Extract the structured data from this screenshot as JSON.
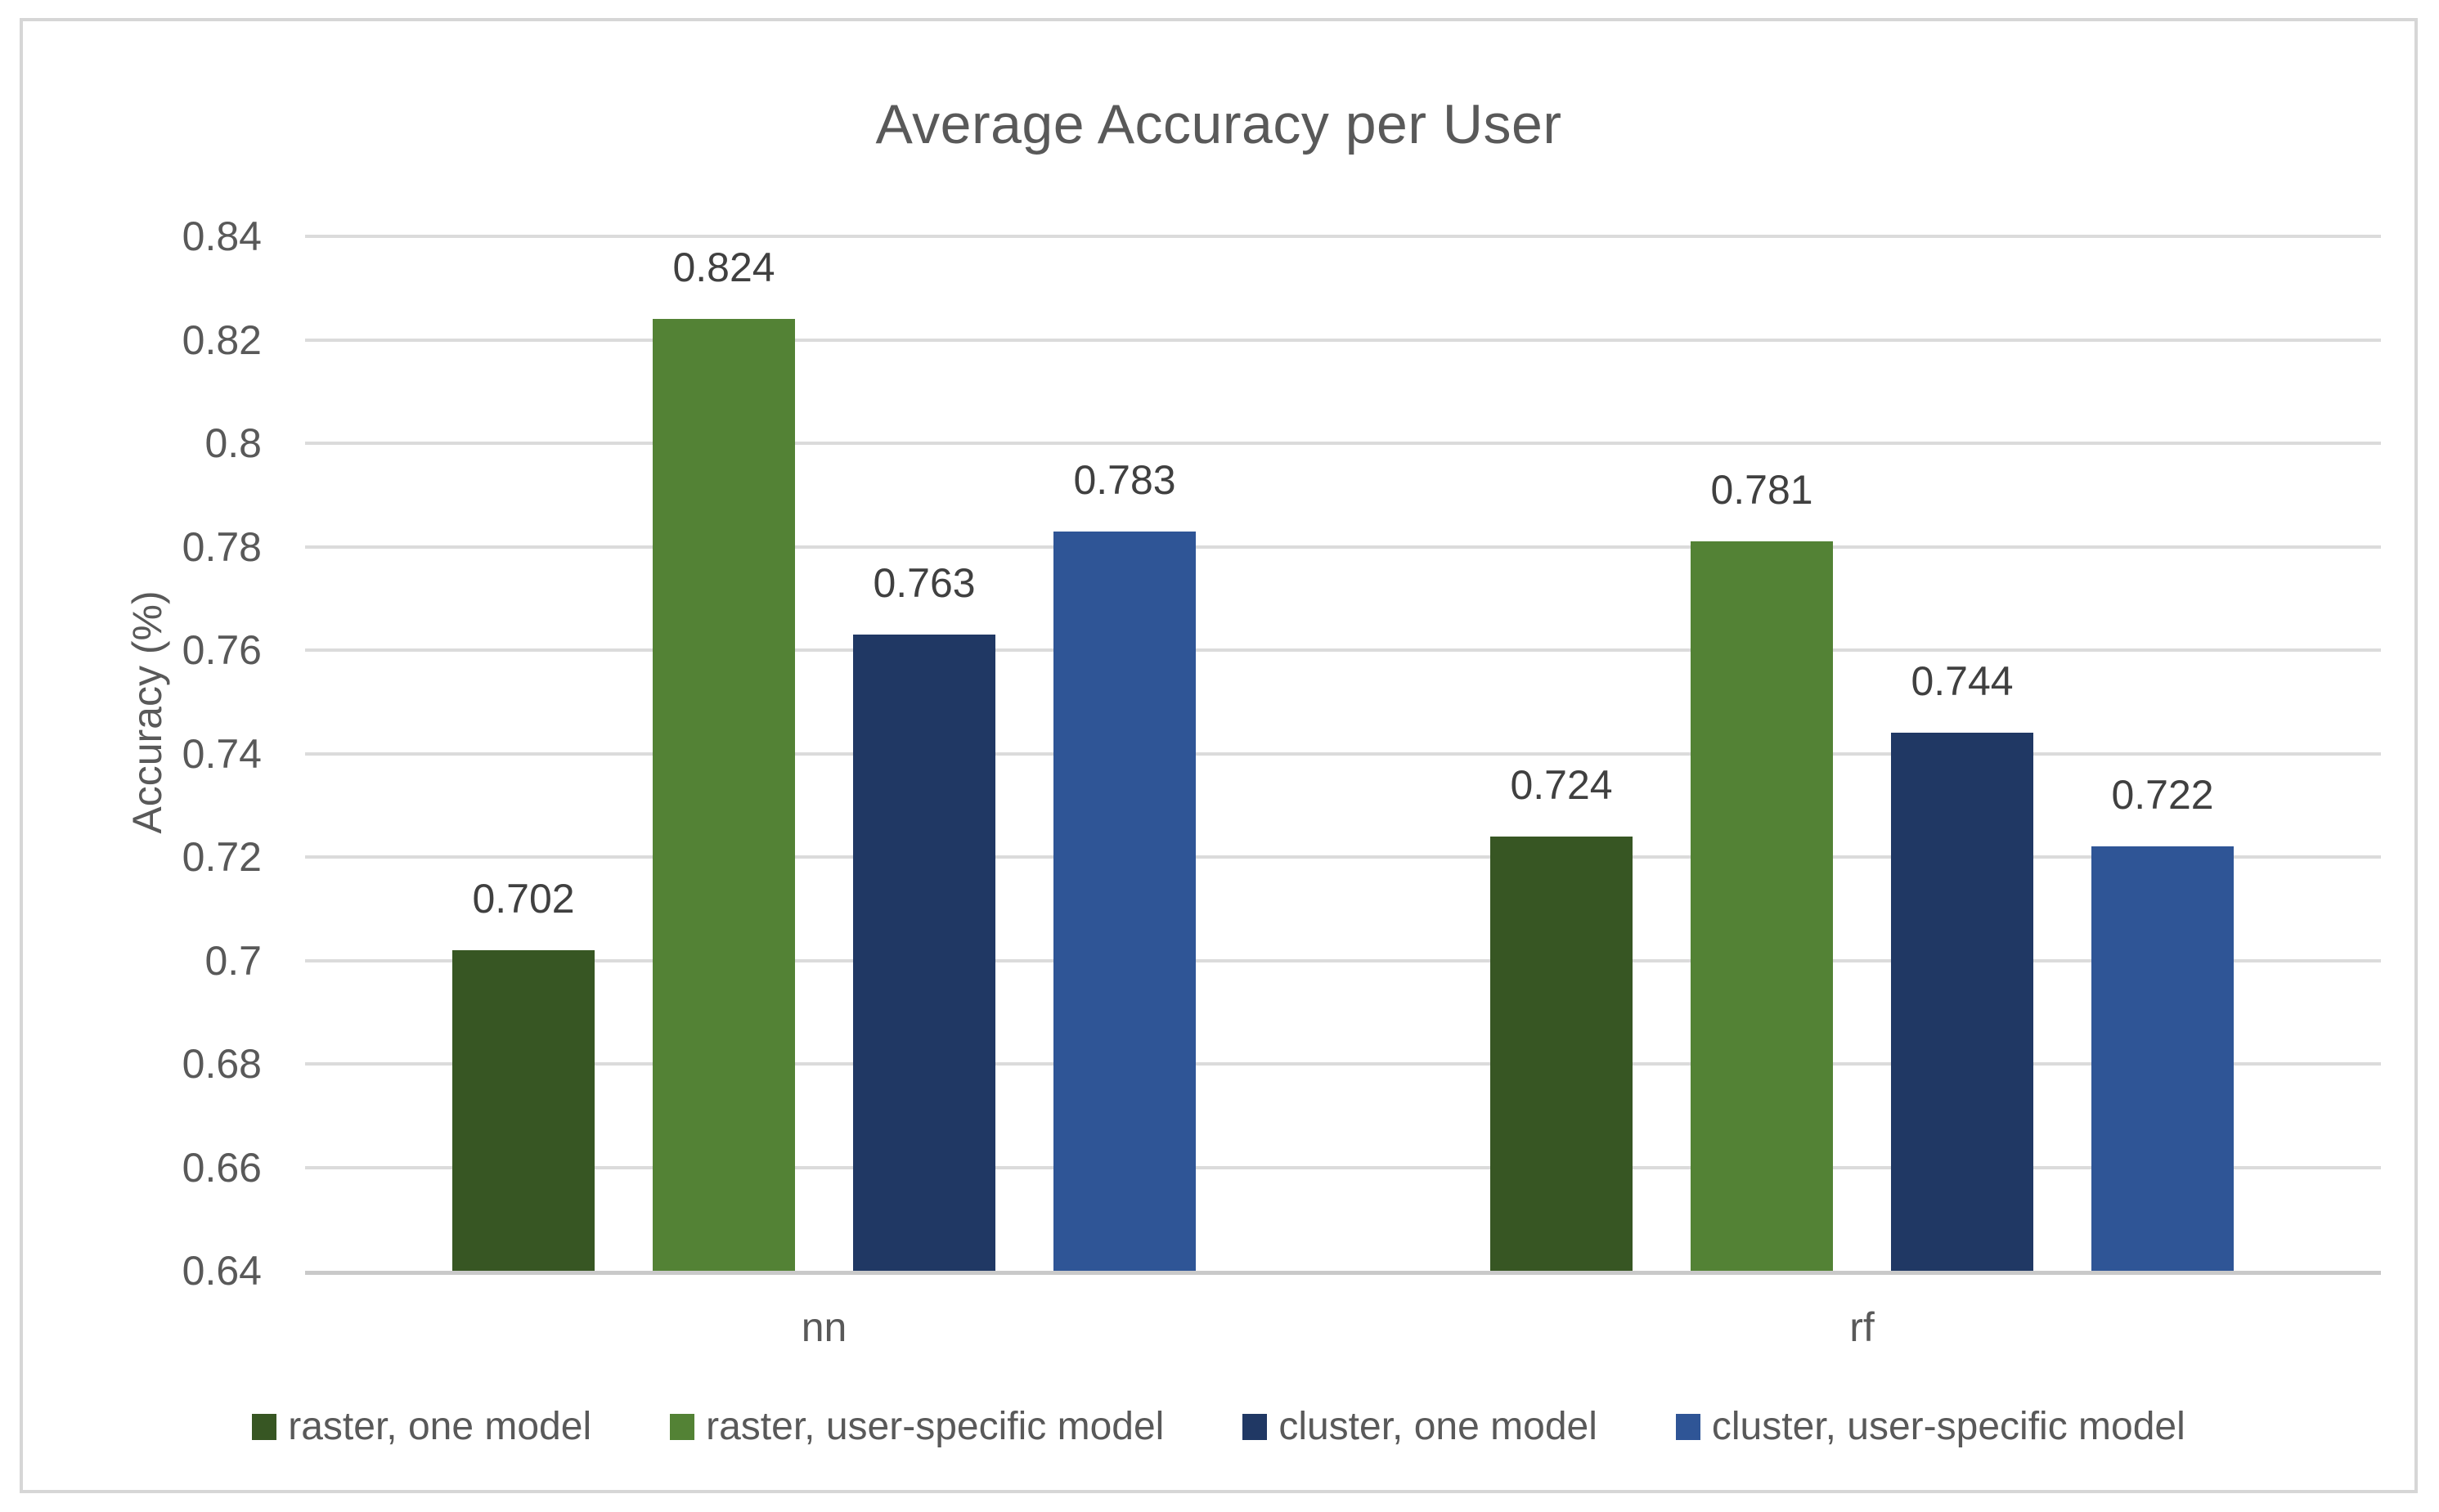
{
  "chart_data": {
    "type": "bar",
    "title": "Average Accuracy per User",
    "ylabel": "Accuracy (%)",
    "xlabel": "",
    "categories": [
      "nn",
      "rf"
    ],
    "series": [
      {
        "name": "raster, one model",
        "color": "#375623",
        "values": [
          0.702,
          0.724
        ],
        "labels": [
          "0.702",
          "0.724"
        ]
      },
      {
        "name": "raster, user-specific model",
        "color": "#538235",
        "values": [
          0.824,
          0.781
        ],
        "labels": [
          "0.824",
          "0.781"
        ]
      },
      {
        "name": "cluster, one model",
        "color": "#203864",
        "values": [
          0.763,
          0.744
        ],
        "labels": [
          "0.763",
          "0.744"
        ]
      },
      {
        "name": "cluster, user-specific model",
        "color": "#2F5596",
        "values": [
          0.783,
          0.722
        ],
        "labels": [
          "0.783",
          "0.722"
        ]
      }
    ],
    "ylim": [
      0.64,
      0.84
    ],
    "ytick_step": 0.02,
    "yticks": [
      "0.84",
      "0.82",
      "0.8",
      "0.78",
      "0.76",
      "0.74",
      "0.72",
      "0.7",
      "0.68",
      "0.66",
      "0.64"
    ],
    "grid": true,
    "legend_position": "bottom",
    "colors": {
      "title_text": "#595959",
      "axis_text": "#595959",
      "data_label_text": "#404040",
      "gridline": "#dbdbdb",
      "axis_line": "#c9c9c9",
      "frame_border": "#d6d6d6"
    }
  }
}
